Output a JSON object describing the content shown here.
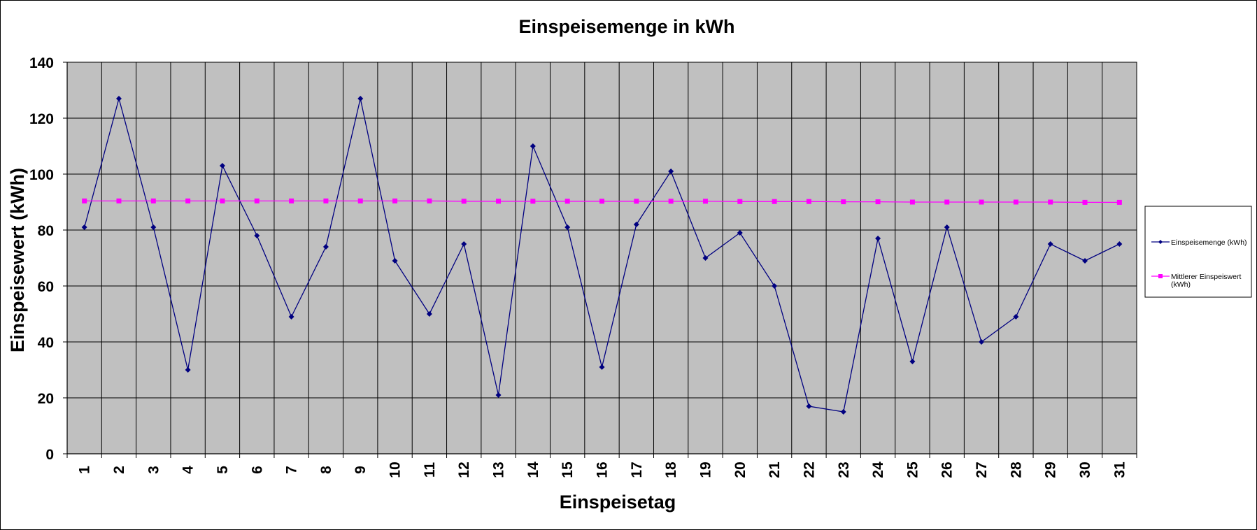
{
  "chart_data": {
    "type": "line",
    "title": "Einspeisemenge in kWh",
    "xlabel": "Einspeisetag",
    "ylabel": "Einspeisewert  (kWh)",
    "x": [
      1,
      2,
      3,
      4,
      5,
      6,
      7,
      8,
      9,
      10,
      11,
      12,
      13,
      14,
      15,
      16,
      17,
      18,
      19,
      20,
      21,
      22,
      23,
      24,
      25,
      26,
      27,
      28,
      29,
      30,
      31
    ],
    "ylim": [
      0,
      140
    ],
    "yticks": [
      0,
      20,
      40,
      60,
      80,
      100,
      120,
      140
    ],
    "grid": true,
    "legend_position": "right",
    "plot_background": "#c0c0c0",
    "series": [
      {
        "name": "Einspeisemenge (kWh)",
        "color": "#000080",
        "marker": "diamond",
        "values": [
          81,
          127,
          81,
          30,
          103,
          78,
          49,
          74,
          127,
          69,
          50,
          75,
          21,
          110,
          81,
          31,
          82,
          101,
          70,
          79,
          60,
          17,
          15,
          77,
          33,
          81,
          40,
          49,
          75,
          69,
          75
        ]
      },
      {
        "name": "Mittlerer Einspeiswert (kWh)",
        "name_lines": [
          "Mittlerer Einspeiswert",
          "(kWh)"
        ],
        "color": "#ff00ff",
        "marker": "square",
        "values": [
          90.4,
          90.4,
          90.4,
          90.4,
          90.4,
          90.4,
          90.4,
          90.4,
          90.4,
          90.4,
          90.4,
          90.3,
          90.3,
          90.3,
          90.3,
          90.3,
          90.3,
          90.3,
          90.3,
          90.2,
          90.2,
          90.2,
          90.1,
          90.1,
          90.0,
          90.0,
          90.0,
          90.0,
          90.0,
          89.9,
          89.9
        ]
      }
    ]
  }
}
